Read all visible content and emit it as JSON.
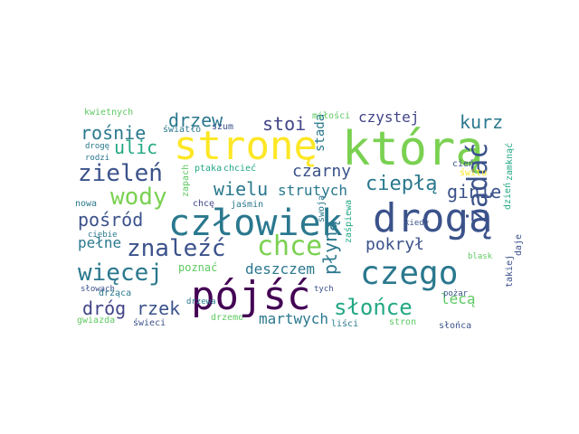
{
  "words": [
    {
      "text": "którą",
      "color": "#7ad151"
    },
    {
      "text": "stronę",
      "color": "#fde725"
    },
    {
      "text": "drogą",
      "color": "#3b528b"
    },
    {
      "text": "człowiek",
      "color": "#2a788e"
    },
    {
      "text": "pójść",
      "color": "#440154"
    },
    {
      "text": "chce",
      "color": "#7ad151"
    },
    {
      "text": "czego",
      "color": "#2a788e"
    },
    {
      "text": "zieleń",
      "color": "#3b528b"
    },
    {
      "text": "więcej",
      "color": "#2a788e"
    },
    {
      "text": "znaleźć",
      "color": "#3b528b"
    },
    {
      "text": "wody",
      "color": "#7ad151"
    },
    {
      "text": "żądać",
      "color": "#3b528b"
    },
    {
      "text": "słońce",
      "color": "#22a884"
    },
    {
      "text": "ciepłą",
      "color": "#2a788e"
    },
    {
      "text": "drzew",
      "color": "#2a788e"
    },
    {
      "text": "rośnie",
      "color": "#2a788e"
    },
    {
      "text": "ulic",
      "color": "#22a884"
    },
    {
      "text": "stoi",
      "color": "#414487"
    },
    {
      "text": "kurz",
      "color": "#2a788e"
    },
    {
      "text": "czarny",
      "color": "#3b528b"
    },
    {
      "text": "wielu",
      "color": "#2a788e"
    },
    {
      "text": "ginie",
      "color": "#3b528b"
    },
    {
      "text": "pośród",
      "color": "#3b528b"
    },
    {
      "text": "pokrył",
      "color": "#3b528b"
    },
    {
      "text": "płyną",
      "color": "#2a788e"
    },
    {
      "text": "rzek",
      "color": "#3b528b"
    },
    {
      "text": "dróg",
      "color": "#414487"
    },
    {
      "text": "pełne",
      "color": "#2a788e"
    },
    {
      "text": "deszczem",
      "color": "#2a788e"
    },
    {
      "text": "czystej",
      "color": "#414487"
    },
    {
      "text": "strutych",
      "color": "#2a788e"
    },
    {
      "text": "martwych",
      "color": "#2a788e"
    },
    {
      "text": "lecą",
      "color": "#5ec962"
    },
    {
      "text": "stada",
      "color": "#2a788e"
    },
    {
      "text": "poznać",
      "color": "#5ec962"
    },
    {
      "text": "kwietnych",
      "color": "#5ec962"
    },
    {
      "text": "światło",
      "color": "#2a788e"
    },
    {
      "text": "szum",
      "color": "#3b528b"
    },
    {
      "text": "miłości",
      "color": "#5ec962"
    },
    {
      "text": "drogę",
      "color": "#2a788e"
    },
    {
      "text": "rodzi",
      "color": "#2a788e"
    },
    {
      "text": "ptaka",
      "color": "#22a884"
    },
    {
      "text": "chcieć",
      "color": "#22a884"
    },
    {
      "text": "zapach",
      "color": "#5ec962"
    },
    {
      "text": "chcę",
      "color": "#414487"
    },
    {
      "text": "jaśmin",
      "color": "#2a788e"
    },
    {
      "text": "nowa",
      "color": "#2a788e"
    },
    {
      "text": "ciebie",
      "color": "#2a788e"
    },
    {
      "text": "swoją",
      "color": "#2a788e"
    },
    {
      "text": "zaśpiewa",
      "color": "#22a884"
    },
    {
      "text": "kiedy",
      "color": "#3b528b"
    },
    {
      "text": "cień",
      "color": "#3b528b"
    },
    {
      "text": "świtu",
      "color": "#fde725"
    },
    {
      "text": "zamknąć",
      "color": "#22a884"
    },
    {
      "text": "dzień",
      "color": "#22a884"
    },
    {
      "text": "blask",
      "color": "#5ec962"
    },
    {
      "text": "takiej",
      "color": "#3b528b"
    },
    {
      "text": "daje",
      "color": "#3b528b"
    },
    {
      "text": "słowach",
      "color": "#3b528b"
    },
    {
      "text": "drżąca",
      "color": "#2a788e"
    },
    {
      "text": "drzewa",
      "color": "#2a788e"
    },
    {
      "text": "tych",
      "color": "#3b528b"
    },
    {
      "text": "pożar",
      "color": "#3b528b"
    },
    {
      "text": "gwiazda",
      "color": "#5ec962"
    },
    {
      "text": "drzemo",
      "color": "#5ec962"
    },
    {
      "text": "świeci",
      "color": "#3b528b"
    },
    {
      "text": "liści",
      "color": "#2a788e"
    },
    {
      "text": "stron",
      "color": "#5ec962"
    },
    {
      "text": "słońca",
      "color": "#3b528b"
    }
  ]
}
